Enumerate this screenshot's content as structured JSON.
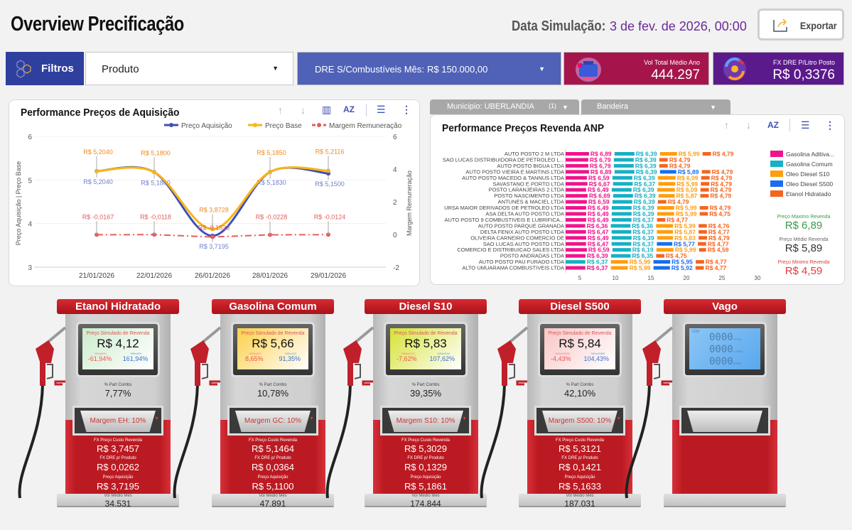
{
  "header": {
    "title": "Overview Precificação",
    "date_label": "Data Simulação:",
    "date_value": "3 de fev. de 2026, 00:00",
    "export_label": "Exportar"
  },
  "filters": {
    "filtros_label": "Filtros",
    "produto_label": "Produto",
    "dre_label": "DRE S/Combustíveis Mês:",
    "dre_value": "R$ 150.000,00"
  },
  "kpis": [
    {
      "label": "Vol Total Médio Ano",
      "value": "444.297",
      "color": "#a5154c"
    },
    {
      "label": "FX DRE P/Litro Posto",
      "value": "R$ 0,3376",
      "color": "#5b1a8c"
    }
  ],
  "acq_chart": {
    "title": "Performance Preços de Aquisição"
  },
  "anp_filters": {
    "municipio": "Municipio: UBERLANDIA",
    "municipio_count": "(1)",
    "bandeira": "Bandeira"
  },
  "anp_chart": {
    "title": "Performance Preços Revenda ANP"
  },
  "anp_kpis": [
    {
      "label": "Preço Maximo Revenda",
      "value": "R$ 6,89",
      "color": "#3a9a4a"
    },
    {
      "label": "Preço Médio Revenda",
      "value": "R$ 5,89",
      "color": "#333333"
    },
    {
      "label": "Preço Minimo Revenda",
      "value": "R$ 4,59",
      "color": "#e53935"
    }
  ],
  "chart_data": [
    {
      "type": "line",
      "title": "Performance Preços de Aquisição",
      "categories": [
        "21/01/2026",
        "22/01/2026",
        "26/01/2026",
        "28/01/2026",
        "29/01/2026"
      ],
      "ylabel": "Preço Aquisição | Preço Base",
      "y2label": "Margem Remuneração",
      "ylim": [
        3,
        6
      ],
      "y2lim": [
        -2,
        6
      ],
      "yticks": [
        "3",
        "4",
        "5",
        "6"
      ],
      "y2ticks": [
        "-2",
        "0",
        "2",
        "4",
        "6"
      ],
      "legend": "top-right",
      "series": [
        {
          "name": "Preço Aquisição",
          "color": "#3f51b5",
          "axis": "left",
          "values": [
            5.204,
            5.18,
            3.7195,
            5.183,
            5.15
          ],
          "labels": [
            "R$ 5,2040",
            "R$ 5,1800",
            "R$ 3,7195",
            "R$ 5,1830",
            "R$ 5,1500"
          ]
        },
        {
          "name": "Preço Base",
          "color": "#fbb415",
          "axis": "left",
          "values": [
            5.204,
            5.18,
            3.8728,
            5.185,
            5.2116
          ],
          "labels": [
            "R$ 5,2040",
            "R$ 5,1800",
            "R$ 3,8728",
            "R$ 5,1850",
            "R$ 5,2116"
          ]
        },
        {
          "name": "Margem Remuneração",
          "color": "#e35d5d",
          "axis": "right",
          "values": [
            -0.0167,
            -0.0118,
            -0.1533,
            -0.0228,
            -0.0124
          ],
          "labels": [
            "R$ -0,0167",
            "R$ -0,0118",
            "R$ -0,1533",
            "R$ -0,0228",
            "R$ -0,0124"
          ]
        }
      ]
    },
    {
      "type": "bar",
      "orientation": "horizontal",
      "stacked": true,
      "title": "Performance Preços Revenda ANP",
      "xlim": [
        3,
        30
      ],
      "xticks": [
        "5",
        "10",
        "15",
        "20",
        "25",
        "30"
      ],
      "legend": "right",
      "series_names": [
        "Gasolina Aditiva...",
        "Gasolina Comum",
        "Oleo Diesel S10",
        "Oleo Diesel S500",
        "Etanol Hidratado"
      ],
      "series_colors": [
        "#f0148c",
        "#17b0c4",
        "#ff9e0f",
        "#1a6cf0",
        "#f4651f"
      ],
      "rows": [
        {
          "name": "AUTO POSTO 2 M LTDA",
          "values": [
            6.89,
            6.39,
            5.99,
            null,
            4.79
          ]
        },
        {
          "name": "SAO LUCAS DISTRIBUIDORA DE PETROLEO L...",
          "values": [
            6.79,
            6.39,
            null,
            null,
            4.79
          ]
        },
        {
          "name": "AUTO POSTO BIGUA LTDA",
          "values": [
            6.79,
            6.39,
            null,
            null,
            4.79
          ]
        },
        {
          "name": "AUTO POSTO VIEIRA E MARTINS LTDA",
          "values": [
            6.89,
            6.39,
            null,
            5.89,
            4.79
          ]
        },
        {
          "name": "AUTO POSTO MACEDO & TANNUS LTDA",
          "values": [
            6.59,
            6.39,
            6.09,
            null,
            4.79
          ]
        },
        {
          "name": "SAVASTANO E PORTO LTDA",
          "values": [
            6.67,
            6.37,
            5.99,
            null,
            4.79
          ]
        },
        {
          "name": "POSTO LARANJEIRAS 2 LTDA",
          "values": [
            6.49,
            6.39,
            6.09,
            null,
            4.79
          ]
        },
        {
          "name": "POSTO NASCIMENTO LTDA",
          "values": [
            6.69,
            6.39,
            5.87,
            null,
            4.79
          ]
        },
        {
          "name": "ANTUNES & MACIEL LTDA",
          "values": [
            6.59,
            6.39,
            null,
            null,
            4.79
          ]
        },
        {
          "name": "URSA MAIOR DERIVADOS DE PETROLEO LTDA",
          "values": [
            6.49,
            6.39,
            5.99,
            null,
            4.79
          ]
        },
        {
          "name": "ASA DELTA AUTO POSTO LTDA",
          "values": [
            6.49,
            6.39,
            5.99,
            null,
            4.75
          ]
        },
        {
          "name": "AUTO POSTO 9 COMBUSTIVEIS E LUBRIFICA...",
          "values": [
            6.49,
            6.37,
            null,
            null,
            4.77
          ]
        },
        {
          "name": "AUTO POSTO PARQUE GRANADA",
          "values": [
            6.36,
            6.36,
            5.99,
            null,
            4.76
          ]
        },
        {
          "name": "DELTA FENIX AUTO POSTO LTDA",
          "values": [
            6.47,
            6.37,
            5.87,
            null,
            4.77
          ]
        },
        {
          "name": "OLIVEIRA CARNEIRO COMERCIO DE",
          "values": [
            6.49,
            6.39,
            5.83,
            null,
            4.79
          ]
        },
        {
          "name": "SAO LUCAS AUTO POSTO LTDA",
          "values": [
            6.47,
            6.37,
            null,
            5.77,
            4.77
          ]
        },
        {
          "name": "COMERCIO E DISTRIBUICAO SALES LTDA",
          "values": [
            6.59,
            6.19,
            5.99,
            null,
            4.59
          ]
        },
        {
          "name": "POSTO ANDRADAS LTDA",
          "values": [
            6.39,
            6.35,
            null,
            null,
            4.75
          ]
        },
        {
          "name": "AUTO POSTO PAU FURADO LTDA",
          "values": [
            null,
            6.37,
            5.99,
            5.95,
            4.77
          ]
        },
        {
          "name": "ALTO UMUARAMA COMBUSTIVEIS LTDA",
          "values": [
            6.37,
            null,
            5.99,
            5.92,
            4.77
          ]
        }
      ]
    }
  ],
  "pumps": [
    {
      "name": "Etanol Hidratado",
      "screen_title": "Preço Simulado de Revenda",
      "price": "R$ 4,12",
      "distr_label": "%DistrEH",
      "rev_label": "%RevEH",
      "distr": "-61,94%",
      "rev": "161,94%",
      "part_label": "% Part Combs",
      "part": "7,77%",
      "margem": "Margem EH: 10%",
      "custo_label": "FX Preço Custo Revenda",
      "custo": "R$ 3,7457",
      "dre_label": "FX DRE p/ Produto",
      "dre": "R$ 0,0262",
      "aq_label": "Preço Aquisição",
      "aq": "R$ 3,7195",
      "vol_label": "Vol Médio Mês",
      "vol": "34.531",
      "screen_color": "#cdeccd"
    },
    {
      "name": "Gasolina Comum",
      "screen_title": "Preço Simulado de Revenda",
      "price": "R$ 5,66",
      "distr_label": "%DistrGC",
      "rev_label": "%RevGC",
      "distr": "8,65%",
      "rev": "91,35%",
      "part_label": "% Part Combs",
      "part": "10,78%",
      "margem": "Margem GC: 10%",
      "custo_label": "FX Preço Custo Revenda",
      "custo": "R$ 5,1464",
      "dre_label": "FX DRE p/ Produto",
      "dre": "R$ 0,0364",
      "aq_label": "Preço Aquisição",
      "aq": "R$ 5,1100",
      "vol_label": "Vol Médio Mês",
      "vol": "47.891",
      "screen_color": "#fcd04a"
    },
    {
      "name": "Diesel S10",
      "screen_title": "Preço Simulado de Revenda",
      "price": "R$ 5,83",
      "distr_label": "%DistrS10",
      "rev_label": "%RevS10",
      "distr": "-7,62%",
      "rev": "107,62%",
      "part_label": "% Part Combs",
      "part": "39,35%",
      "margem": "Margem S10: 10%",
      "custo_label": "FX Preço Custo Revenda",
      "custo": "R$ 5,3029",
      "dre_label": "FX DRE p/ Produto",
      "dre": "R$ 0,1329",
      "aq_label": "Preço Aquisição",
      "aq": "R$ 5,1861",
      "vol_label": "Vol Médio Mês",
      "vol": "174.844",
      "screen_color": "#d6e234"
    },
    {
      "name": "Diesel S500",
      "screen_title": "Preço Simulado de Revenda",
      "price": "R$ 5,84",
      "distr_label": "%DistrS500",
      "rev_label": "%RevS500",
      "distr": "-4,43%",
      "rev": "104,43%",
      "part_label": "% Part Combs",
      "part": "42,10%",
      "margem": "Margem S500: 10%",
      "custo_label": "FX Preço Custo Revenda",
      "custo": "R$ 5,3121",
      "dre_label": "FX DRE p/ Produto",
      "dre": "R$ 0,1421",
      "aq_label": "Preço Aquisição",
      "aq": "R$ 5,1633",
      "vol_label": "Vol Médio Mês",
      "vol": "187.031",
      "screen_color": "#f8c6c6"
    }
  ],
  "vago": {
    "name": "Vago",
    "code": "1208",
    "rows": [
      {
        "digits": "0000",
        "unit": "TOTAL"
      },
      {
        "digits": "0000",
        "unit": "LITERS"
      },
      {
        "digits": "0000",
        "unit": "PRICE"
      }
    ]
  }
}
